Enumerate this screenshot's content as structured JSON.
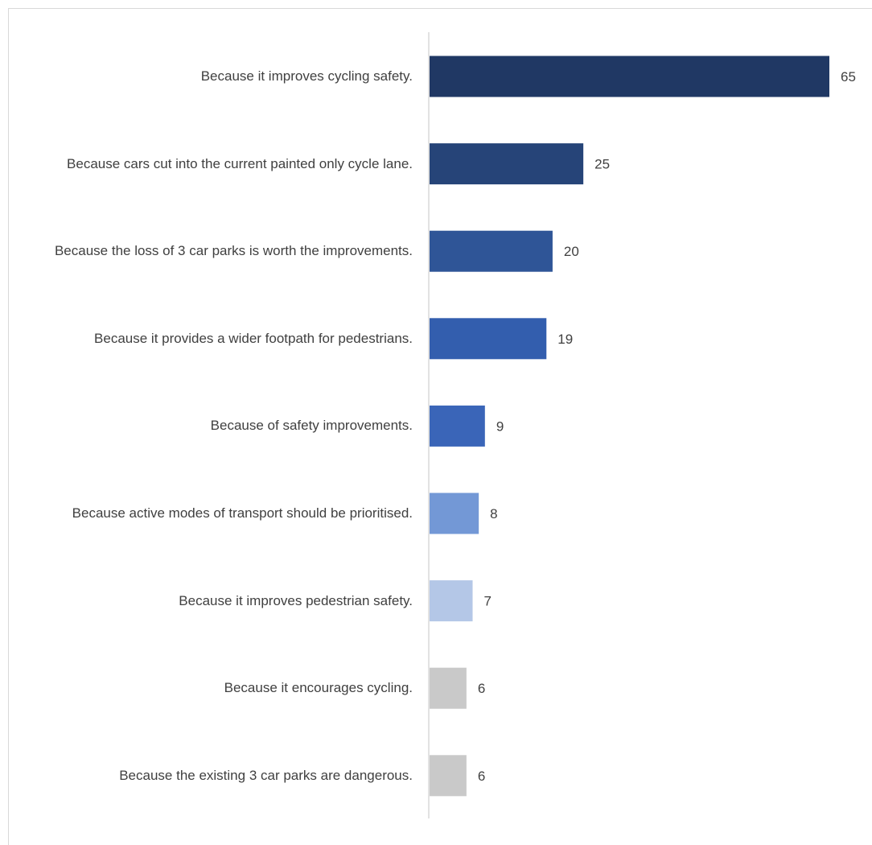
{
  "chart_data": {
    "type": "bar",
    "orientation": "horizontal",
    "title": "",
    "xlabel": "",
    "ylabel": "",
    "grid": false,
    "legend": "none",
    "xlim": [
      0,
      65
    ],
    "categories": [
      "Because it improves cycling safety.",
      "Because cars cut into the current painted only cycle lane.",
      "Because the loss of 3 car parks is worth the improvements.",
      "Because it provides a wider footpath for pedestrians.",
      "Because of safety improvements.",
      "Because active modes of transport should be prioritised.",
      "Because it improves pedestrian safety.",
      "Because it encourages cycling.",
      "Because the existing 3 car parks are dangerous."
    ],
    "values": [
      65,
      25,
      20,
      19,
      9,
      8,
      7,
      6,
      6
    ],
    "data_labels": [
      "65",
      "25",
      "20",
      "19",
      "9",
      "8",
      "7",
      "6",
      "6"
    ],
    "bar_colors": [
      "#203864",
      "#264478",
      "#2f5597",
      "#335eae",
      "#3a65b8",
      "#7398d6",
      "#b4c7e7",
      "#c9c9c9",
      "#c9c9c9"
    ],
    "axis_color": "#d9d9d9",
    "label_color": "#404040"
  }
}
